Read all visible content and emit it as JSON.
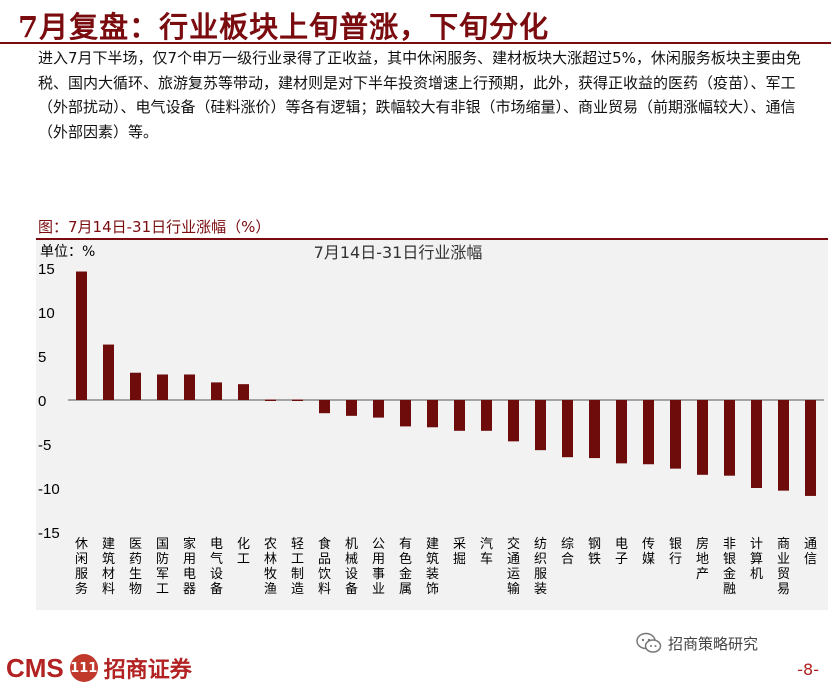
{
  "slide": {
    "title": "7月复盘：行业板块上旬普涨，下旬分化",
    "intro": "进入7月下半场，仅7个申万一级行业录得了正收益，其中休闲服务、建材板块大涨超过5%，休闲服务板块主要由免税、国内大循环、旅游复苏等带动，建材则是对下半年投资增速上行预期，此外，获得正收益的医药（疫苗）、军工（外部扰动）、电气设备（硅料涨价）等各有逻辑；跌幅较大有非银（市场缩量）、商业贸易（前期涨幅较大）、通信（外部因素）等。",
    "page_number": "-8-"
  },
  "footer": {
    "logo_en": "CMS",
    "logo_emblem": "111",
    "logo_cn": "招商证券",
    "wechat_name": "招商策略研究"
  },
  "colors": {
    "brand": "#7a0b0f",
    "bar": "#6e0b0b",
    "panel": "#f2f2f2"
  },
  "chart_data": {
    "type": "bar",
    "caption": "图：7月14日-31日行业涨幅（%）",
    "title": "7月14日-31日行业涨幅",
    "unit_label": "单位：%",
    "ylim": [
      -15,
      15
    ],
    "yticks": [
      15,
      10,
      5,
      0,
      -5,
      -10,
      -15
    ],
    "categories": [
      "休闲服务",
      "建筑材料",
      "医药生物",
      "国防军工",
      "家用电器",
      "电气设备",
      "化工",
      "农林牧渔",
      "轻工制造",
      "食品饮料",
      "机械设备",
      "公用事业",
      "有色金属",
      "建筑装饰",
      "采掘",
      "汽车",
      "交通运输",
      "纺织服装",
      "综合",
      "钢铁",
      "电子",
      "传媒",
      "银行",
      "房地产",
      "非银金融",
      "计算机",
      "商业贸易",
      "通信"
    ],
    "values": [
      14.6,
      6.3,
      3.1,
      2.9,
      2.9,
      2.0,
      1.8,
      -0.1,
      -0.1,
      -1.5,
      -1.8,
      -2.0,
      -3.0,
      -3.1,
      -3.5,
      -3.5,
      -4.7,
      -5.7,
      -6.5,
      -6.6,
      -7.2,
      -7.3,
      -7.8,
      -8.5,
      -8.6,
      -10.0,
      -10.3,
      -10.9
    ]
  }
}
